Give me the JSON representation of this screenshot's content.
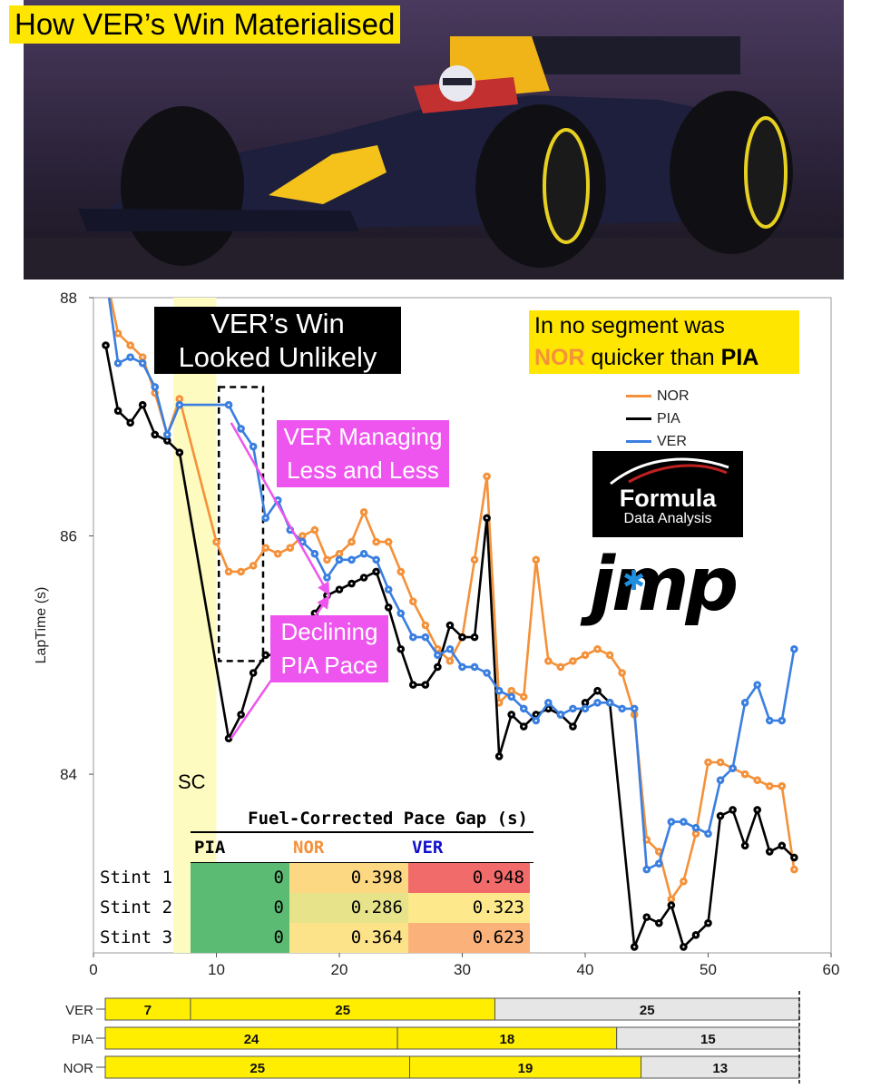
{
  "header": {
    "title": "How VER’s Win Materialised"
  },
  "photo": {
    "description_icon": "racing-car-photo"
  },
  "annotations": {
    "win_note_line1": "VER’s Win",
    "win_note_line2": "Looked Unlikely",
    "nor_note_line1": "In no segment was",
    "nor_note_nor": "NOR",
    "nor_note_mid": " quicker than ",
    "nor_note_pia": "PIA",
    "managing_line1": "VER Managing",
    "managing_line2": "Less and Less",
    "declining_line1": "Declining",
    "declining_line2": "PIA Pace",
    "sc_label": "SC"
  },
  "logos": {
    "fda_big": "Formula",
    "fda_small": "Data Analysis",
    "jmp": "jmp"
  },
  "legend": [
    {
      "name": "NOR",
      "color": "#f4913a"
    },
    {
      "name": "PIA",
      "color": "#000000"
    },
    {
      "name": "VER",
      "color": "#3a7fe0"
    }
  ],
  "table": {
    "title": "Fuel-Corrected Pace Gap (s)",
    "columns": [
      "PIA",
      "NOR",
      "VER"
    ],
    "column_colors": [
      "#000000",
      "#f4913a",
      "#1010cc"
    ],
    "rows": [
      {
        "label": "Stint 1",
        "values": [
          "0",
          "0.398",
          "0.948"
        ],
        "colors": [
          "#5cbb73",
          "#fcd883",
          "#f26b6b"
        ]
      },
      {
        "label": "Stint 2",
        "values": [
          "0",
          "0.286",
          "0.323"
        ],
        "colors": [
          "#5cbb73",
          "#e6e38a",
          "#fde98c"
        ]
      },
      {
        "label": "Stint 3",
        "values": [
          "0",
          "0.364",
          "0.623"
        ],
        "colors": [
          "#5cbb73",
          "#fce38a",
          "#fbb27a"
        ]
      }
    ]
  },
  "chart_data": [
    {
      "type": "line",
      "title": "",
      "xlabel": "",
      "ylabel": "LapTime (s)",
      "xlim": [
        0,
        60
      ],
      "ylim": [
        82.5,
        88
      ],
      "xticks": [
        0,
        10,
        20,
        30,
        40,
        50,
        60
      ],
      "yticks": [
        84,
        86,
        88
      ],
      "shaded_region": {
        "x": [
          6.5,
          10
        ],
        "label": "SC",
        "color": "#fdfbbf"
      },
      "highlight_box": {
        "x": [
          10.2,
          13.8
        ],
        "y": [
          84.95,
          87.25
        ]
      },
      "series": [
        {
          "name": "NOR",
          "color": "#f4913a",
          "points": [
            [
              1,
              88.2
            ],
            [
              2,
              87.7
            ],
            [
              3,
              87.6
            ],
            [
              4,
              87.5
            ],
            [
              5,
              87.2
            ],
            [
              6,
              86.85
            ],
            [
              7,
              87.15
            ],
            [
              10,
              85.95
            ],
            [
              11,
              85.7
            ],
            [
              12,
              85.7
            ],
            [
              13,
              85.75
            ],
            [
              14,
              85.9
            ],
            [
              15,
              85.85
            ],
            [
              16,
              85.9
            ],
            [
              17,
              86.0
            ],
            [
              18,
              86.05
            ],
            [
              19,
              85.8
            ],
            [
              20,
              85.85
            ],
            [
              21,
              85.95
            ],
            [
              22,
              86.2
            ],
            [
              23,
              85.95
            ],
            [
              24,
              85.95
            ],
            [
              25,
              85.7
            ],
            [
              26,
              85.45
            ],
            [
              27,
              85.25
            ],
            [
              28,
              85.05
            ],
            [
              29,
              84.95
            ],
            [
              30,
              85.15
            ],
            [
              31,
              85.8
            ],
            [
              32,
              86.5
            ],
            [
              33,
              84.6
            ],
            [
              34,
              84.7
            ],
            [
              35,
              84.65
            ],
            [
              36,
              85.8
            ],
            [
              37,
              84.95
            ],
            [
              38,
              84.9
            ],
            [
              39,
              84.95
            ],
            [
              40,
              85.0
            ],
            [
              41,
              85.05
            ],
            [
              42,
              85.0
            ],
            [
              43,
              84.85
            ],
            [
              44,
              84.5
            ],
            [
              45,
              83.45
            ],
            [
              46,
              83.35
            ],
            [
              47,
              82.95
            ],
            [
              48,
              83.1
            ],
            [
              49,
              83.5
            ],
            [
              50,
              84.1
            ],
            [
              51,
              84.1
            ],
            [
              52,
              84.05
            ],
            [
              53,
              84.0
            ],
            [
              54,
              83.95
            ],
            [
              55,
              83.9
            ],
            [
              56,
              83.9
            ],
            [
              57,
              83.2
            ]
          ]
        },
        {
          "name": "PIA",
          "color": "#000000",
          "points": [
            [
              1,
              87.6
            ],
            [
              2,
              87.05
            ],
            [
              3,
              86.95
            ],
            [
              4,
              87.1
            ],
            [
              5,
              86.85
            ],
            [
              6,
              86.8
            ],
            [
              7,
              86.7
            ],
            [
              11,
              84.3
            ],
            [
              12,
              84.5
            ],
            [
              13,
              84.85
            ],
            [
              14,
              85.0
            ],
            [
              15,
              85.0
            ],
            [
              16,
              84.85
            ],
            [
              17,
              85.15
            ],
            [
              18,
              85.35
            ],
            [
              19,
              85.5
            ],
            [
              20,
              85.55
            ],
            [
              21,
              85.6
            ],
            [
              22,
              85.65
            ],
            [
              23,
              85.7
            ],
            [
              24,
              85.4
            ],
            [
              25,
              85.05
            ],
            [
              26,
              84.75
            ],
            [
              27,
              84.75
            ],
            [
              28,
              84.9
            ],
            [
              29,
              85.25
            ],
            [
              30,
              85.15
            ],
            [
              31,
              85.15
            ],
            [
              32,
              86.15
            ],
            [
              33,
              84.15
            ],
            [
              34,
              84.5
            ],
            [
              35,
              84.4
            ],
            [
              36,
              84.5
            ],
            [
              37,
              84.55
            ],
            [
              38,
              84.5
            ],
            [
              39,
              84.4
            ],
            [
              40,
              84.6
            ],
            [
              41,
              84.7
            ],
            [
              42,
              84.6
            ],
            [
              44,
              82.55
            ],
            [
              45,
              82.8
            ],
            [
              46,
              82.75
            ],
            [
              47,
              82.9
            ],
            [
              48,
              82.55
            ],
            [
              49,
              82.65
            ],
            [
              50,
              82.75
            ],
            [
              51,
              83.65
            ],
            [
              52,
              83.7
            ],
            [
              53,
              83.4
            ],
            [
              54,
              83.7
            ],
            [
              55,
              83.35
            ],
            [
              56,
              83.4
            ],
            [
              57,
              83.3
            ]
          ]
        },
        {
          "name": "VER",
          "color": "#3a7fe0",
          "points": [
            [
              1,
              88.2
            ],
            [
              2,
              87.45
            ],
            [
              3,
              87.5
            ],
            [
              4,
              87.45
            ],
            [
              5,
              87.25
            ],
            [
              6,
              86.85
            ],
            [
              7,
              87.1
            ],
            [
              11,
              87.1
            ],
            [
              12,
              86.9
            ],
            [
              13,
              86.75
            ],
            [
              14,
              86.15
            ],
            [
              15,
              86.3
            ],
            [
              16,
              86.05
            ],
            [
              17,
              85.95
            ],
            [
              18,
              85.85
            ],
            [
              19,
              85.65
            ],
            [
              20,
              85.8
            ],
            [
              21,
              85.8
            ],
            [
              22,
              85.85
            ],
            [
              23,
              85.8
            ],
            [
              24,
              85.55
            ],
            [
              25,
              85.35
            ],
            [
              26,
              85.15
            ],
            [
              27,
              85.15
            ],
            [
              28,
              85.0
            ],
            [
              29,
              85.05
            ],
            [
              30,
              84.9
            ],
            [
              31,
              84.9
            ],
            [
              32,
              84.85
            ],
            [
              33,
              84.7
            ],
            [
              34,
              84.65
            ],
            [
              35,
              84.55
            ],
            [
              36,
              84.45
            ],
            [
              37,
              84.6
            ],
            [
              38,
              84.5
            ],
            [
              39,
              84.55
            ],
            [
              40,
              84.55
            ],
            [
              41,
              84.6
            ],
            [
              42,
              84.6
            ],
            [
              43,
              84.55
            ],
            [
              44,
              84.55
            ],
            [
              45,
              83.2
            ],
            [
              46,
              83.25
            ],
            [
              47,
              83.6
            ],
            [
              48,
              83.6
            ],
            [
              49,
              83.55
            ],
            [
              50,
              83.5
            ],
            [
              51,
              83.95
            ],
            [
              52,
              84.05
            ],
            [
              53,
              84.6
            ],
            [
              54,
              84.75
            ],
            [
              55,
              84.45
            ],
            [
              56,
              84.45
            ],
            [
              57,
              85.05
            ]
          ]
        }
      ]
    },
    {
      "type": "bar",
      "title": "",
      "orientation": "horizontal-stacked",
      "categories": [
        "VER",
        "PIA",
        "NOR"
      ],
      "total_laps": 57,
      "series": [
        {
          "values": [
            7,
            24,
            25
          ],
          "color": "#ffee00"
        },
        {
          "values": [
            25,
            18,
            19
          ],
          "color": "#ffee00"
        },
        {
          "values": [
            25,
            15,
            13
          ],
          "color": "#e6e6e6"
        }
      ]
    }
  ]
}
